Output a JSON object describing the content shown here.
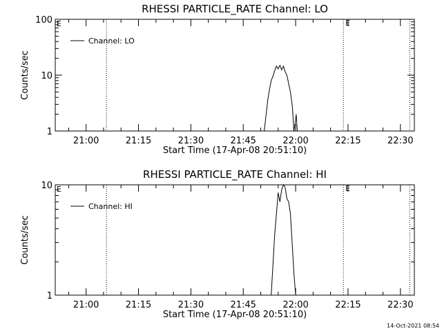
{
  "footer": {
    "timestamp": "14-Oct-2021 08:54"
  },
  "chart_data": [
    {
      "type": "line",
      "title": "RHESSI PARTICLE_RATE Channel: LO",
      "xlabel": "Start Time (17-Apr-08 20:51:10)",
      "ylabel": "Counts/sec",
      "yscale": "log",
      "ylim": [
        1,
        100
      ],
      "y_ticks": [
        "1",
        "10",
        "100"
      ],
      "xlim": [
        "20:51:10",
        "22:34:00"
      ],
      "x_ticks": [
        "21:00",
        "21:15",
        "21:30",
        "21:45",
        "22:00",
        "22:15",
        "22:30"
      ],
      "grid": false,
      "legend_position": "top-left",
      "series": [
        {
          "name": "Channel: LO",
          "color": "#000000",
          "x": [
            "21:51:00",
            "21:52:00",
            "21:52:30",
            "21:53:00",
            "21:53:30",
            "21:54:00",
            "21:54:30",
            "21:55:00",
            "21:55:30",
            "21:56:00",
            "21:56:30",
            "21:57:00",
            "21:57:30",
            "21:58:00",
            "21:58:30",
            "21:59:00",
            "21:59:10",
            "21:59:30",
            "22:00:00",
            "22:00:10",
            "22:00:20",
            "22:00:30"
          ],
          "y": [
            1.0,
            3.5,
            5.5,
            8.0,
            9.5,
            12.0,
            14.5,
            13.0,
            15.0,
            12.5,
            14.5,
            11.5,
            10.0,
            7.0,
            5.0,
            3.0,
            2.2,
            1.0,
            1.6,
            2.0,
            1.3,
            1.0
          ]
        }
      ],
      "annotations": [
        {
          "text": "E",
          "x": "20:51:10",
          "position": "top-left"
        },
        {
          "text": "E",
          "x": "22:13:40",
          "position": "top"
        }
      ],
      "vertical_lines": [
        "21:05:50",
        "22:13:40",
        "22:32:40"
      ]
    },
    {
      "type": "line",
      "title": "RHESSI PARTICLE_RATE Channel: HI",
      "xlabel": "Start Time (17-Apr-08 20:51:10)",
      "ylabel": "Counts/sec",
      "yscale": "log",
      "ylim": [
        1,
        10
      ],
      "y_ticks": [
        "1",
        "10"
      ],
      "xlim": [
        "20:51:10",
        "22:34:00"
      ],
      "x_ticks": [
        "21:00",
        "21:15",
        "21:30",
        "21:45",
        "22:00",
        "22:15",
        "22:30"
      ],
      "grid": false,
      "legend_position": "top-left",
      "series": [
        {
          "name": "Channel: HI",
          "color": "#000000",
          "x": [
            "21:53:00",
            "21:54:00",
            "21:55:00",
            "21:55:30",
            "21:56:00",
            "21:56:30",
            "21:57:00",
            "21:57:30",
            "21:58:00",
            "21:58:30",
            "21:59:00",
            "21:59:30",
            "22:00:00"
          ],
          "y": [
            1.0,
            3.5,
            8.5,
            7.0,
            9.0,
            10.0,
            9.5,
            7.5,
            7.0,
            5.5,
            3.0,
            1.6,
            1.0
          ]
        }
      ],
      "annotations": [
        {
          "text": "E",
          "x": "20:51:10",
          "position": "top-left"
        },
        {
          "text": "E",
          "x": "22:13:40",
          "position": "top"
        }
      ],
      "vertical_lines": [
        "21:05:50",
        "22:13:40",
        "22:32:40"
      ]
    }
  ]
}
